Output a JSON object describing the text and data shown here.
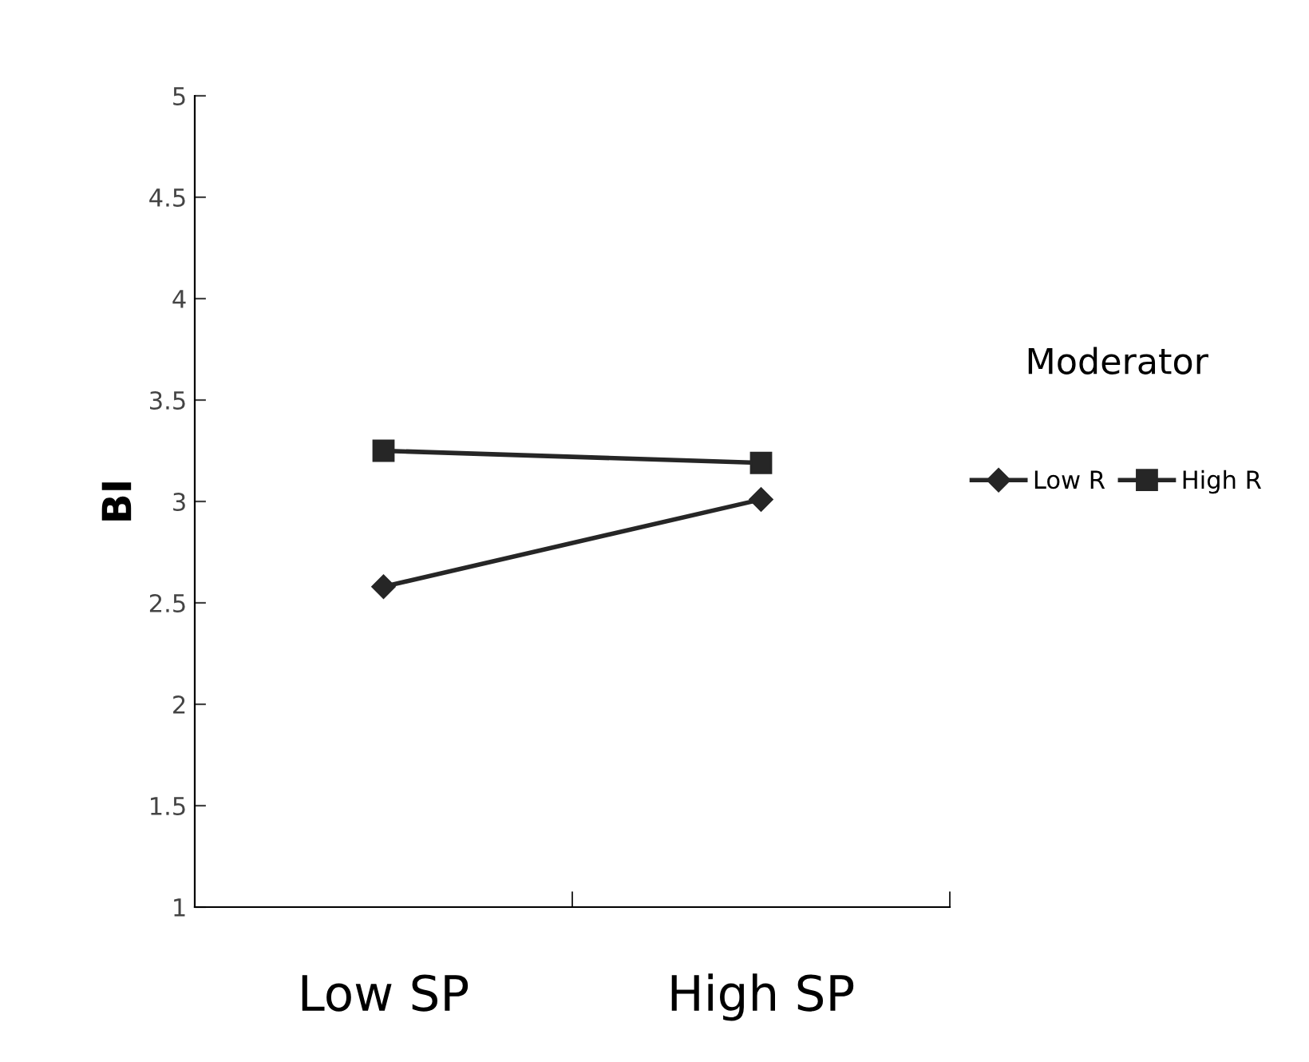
{
  "chart_data": {
    "type": "line",
    "ylabel": "BI",
    "legend_title": "Moderator",
    "categories": [
      "Low SP",
      "High SP"
    ],
    "series": [
      {
        "name": "Low R",
        "color": "#262626",
        "marker": "diamond",
        "values": [
          2.58,
          3.01
        ]
      },
      {
        "name": "High R",
        "color": "#262626",
        "marker": "square",
        "values": [
          3.25,
          3.19
        ]
      }
    ],
    "ylim": [
      1,
      5
    ],
    "yticks": [
      1,
      1.5,
      2,
      2.5,
      3,
      3.5,
      4,
      4.5,
      5
    ],
    "grid": false,
    "legend": "right",
    "line_style": "solid"
  }
}
